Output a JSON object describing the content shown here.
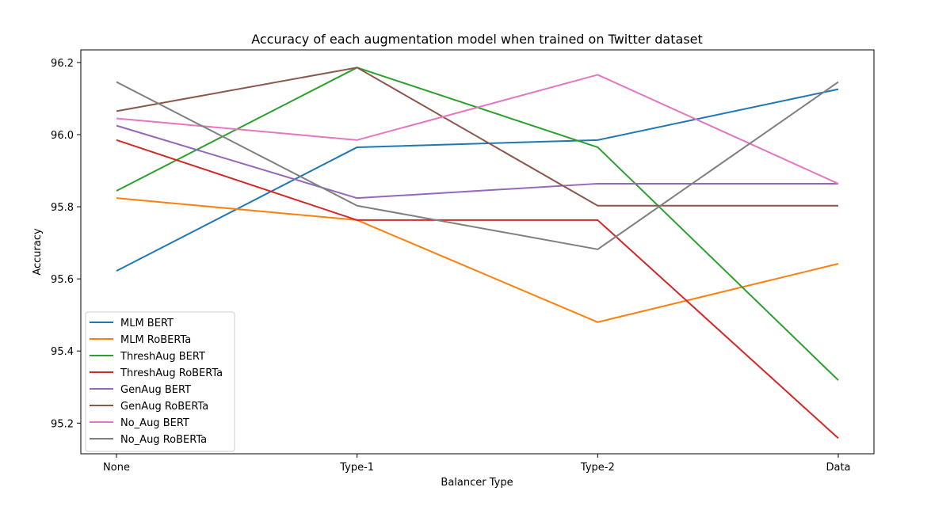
{
  "chart_data": {
    "type": "line",
    "title": "Accuracy of each augmentation model when trained on Twitter dataset",
    "xlabel": "Balancer Type",
    "ylabel": "Accuracy",
    "categories": [
      "None",
      "Type-1",
      "Type-2",
      "Data"
    ],
    "ylim": [
      95.115,
      96.235
    ],
    "yticks": [
      95.2,
      95.4,
      95.6,
      95.8,
      96.0,
      96.2
    ],
    "ytick_labels": [
      "95.2",
      "95.4",
      "95.6",
      "95.8",
      "96.0",
      "96.2"
    ],
    "grid": false,
    "legend_position": "lower-left",
    "series": [
      {
        "name": "MLM BERT",
        "color": "#1f77b4",
        "values": [
          95.622,
          95.965,
          95.985,
          96.126
        ]
      },
      {
        "name": "MLM RoBERTa",
        "color": "#ff7f0e",
        "values": [
          95.824,
          95.763,
          95.48,
          95.642
        ]
      },
      {
        "name": "ThreshAug BERT",
        "color": "#2ca02c",
        "values": [
          95.844,
          96.186,
          95.965,
          95.319
        ]
      },
      {
        "name": "ThreshAug RoBERTa",
        "color": "#d62728",
        "values": [
          95.985,
          95.763,
          95.763,
          95.158
        ]
      },
      {
        "name": "GenAug BERT",
        "color": "#9467bd",
        "values": [
          96.025,
          95.824,
          95.864,
          95.864
        ]
      },
      {
        "name": "GenAug RoBERTa",
        "color": "#8c564b",
        "values": [
          96.065,
          96.186,
          95.803,
          95.803
        ]
      },
      {
        "name": "No_Aug BERT",
        "color": "#e377c2",
        "values": [
          96.045,
          95.985,
          96.166,
          95.864
        ]
      },
      {
        "name": "No_Aug RoBERTa",
        "color": "#7f7f7f",
        "values": [
          96.146,
          95.803,
          95.682,
          96.146
        ]
      }
    ]
  }
}
